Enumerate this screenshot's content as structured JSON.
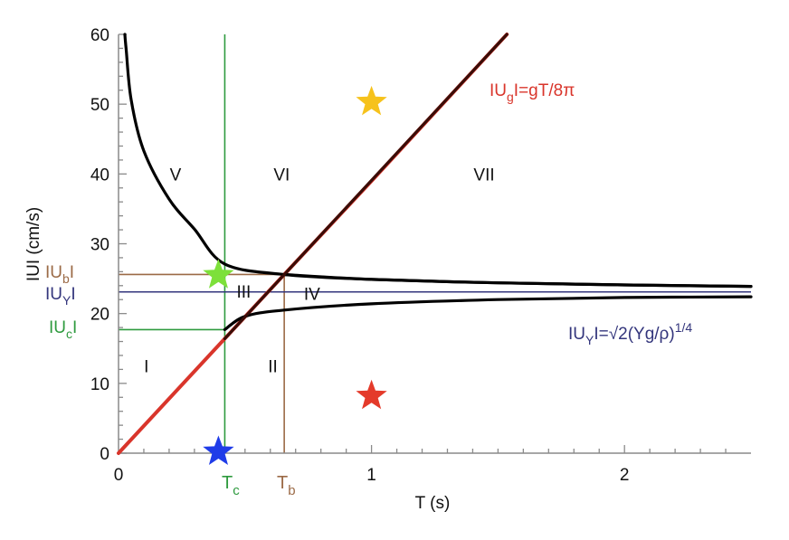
{
  "chart_data": {
    "type": "line",
    "xlabel": "T (s)",
    "ylabel": "IUI (cm/s)",
    "xlim": [
      0,
      2.5
    ],
    "ylim": [
      0,
      60
    ],
    "x_ticks": [
      {
        "value": 0,
        "label": "0"
      },
      {
        "value": 1,
        "label": "1"
      },
      {
        "value": 2,
        "label": "2"
      }
    ],
    "y_ticks": [
      {
        "value": 0,
        "label": "0"
      },
      {
        "value": 10,
        "label": "10"
      },
      {
        "value": 20,
        "label": "20"
      },
      {
        "value": 30,
        "label": "30"
      },
      {
        "value": 40,
        "label": "40"
      },
      {
        "value": 50,
        "label": "50"
      },
      {
        "value": 60,
        "label": "60"
      }
    ],
    "grid": false,
    "constants": {
      "Tc": 0.42,
      "Tb": 0.655,
      "Uc": 17.7,
      "Ub": 25.6,
      "Uy": 23.1
    },
    "series": [
      {
        "color": "#d9352b",
        "formula": "U = 39.0 * T",
        "points": [
          [
            0,
            0
          ],
          [
            0.42,
            16.4
          ],
          [
            0.655,
            25.6
          ],
          [
            1.0,
            39.0
          ],
          [
            1.535,
            60.0
          ]
        ]
      },
      {
        "color": "#000000",
        "points": [
          [
            0.025,
            60.0
          ],
          [
            0.03,
            57.9
          ],
          [
            0.05,
            50.6
          ],
          [
            0.1,
            43.3
          ],
          [
            0.2,
            36.4
          ],
          [
            0.3,
            32.1
          ],
          [
            0.42,
            27.1
          ],
          [
            0.655,
            25.6
          ],
          [
            1.0,
            24.9
          ],
          [
            1.5,
            24.4
          ],
          [
            2.0,
            24.1
          ],
          [
            2.5,
            23.9
          ]
        ]
      },
      {
        "color": "#000000",
        "points": [
          [
            0.655,
            25.6
          ],
          [
            1.0,
            24.9
          ],
          [
            1.5,
            24.4
          ],
          [
            2.0,
            24.1
          ],
          [
            2.5,
            23.9
          ]
        ]
      },
      {
        "color": "#000000",
        "points": [
          [
            0.42,
            17.7
          ],
          [
            0.5,
            19.6
          ],
          [
            0.655,
            20.5
          ],
          [
            1.0,
            21.4
          ],
          [
            1.5,
            22.0
          ],
          [
            2.0,
            22.3
          ],
          [
            2.5,
            22.4
          ]
        ]
      }
    ],
    "guide_lines": [
      {
        "color": "#2e9a3e",
        "orientation": "vertical",
        "x": 0.42,
        "y_range": [
          0,
          60
        ]
      },
      {
        "color": "#2e9a3e",
        "orientation": "horizontal",
        "y": 17.7,
        "x_range": [
          0,
          0.42
        ]
      },
      {
        "color": "#9b6a46",
        "orientation": "vertical",
        "x": 0.655,
        "y_range": [
          0,
          25.6
        ]
      },
      {
        "color": "#9b6a46",
        "orientation": "horizontal",
        "y": 25.6,
        "x_range": [
          0,
          0.655
        ]
      },
      {
        "color": "#33357c",
        "orientation": "horizontal",
        "y": 23.1,
        "x_range": [
          0,
          2.5
        ]
      }
    ],
    "region_labels": [
      {
        "text": "I",
        "x": 0.11,
        "y": 12.5
      },
      {
        "text": "II",
        "x": 0.61,
        "y": 12.5
      },
      {
        "text": "III",
        "x": 0.495,
        "y": 23.2
      },
      {
        "text": "IV",
        "x": 0.765,
        "y": 22.9
      },
      {
        "text": "V",
        "x": 0.225,
        "y": 40.0
      },
      {
        "text": "VI",
        "x": 0.645,
        "y": 40.0
      },
      {
        "text": "VII",
        "x": 1.445,
        "y": 40.0
      }
    ],
    "markers": [
      {
        "shape": "star",
        "color": "#f6c21c",
        "x": 1.0,
        "y": 50.3
      },
      {
        "shape": "star",
        "color": "#e43a2a",
        "x": 1.0,
        "y": 8.2
      },
      {
        "shape": "star",
        "color": "#7de03a",
        "x": 0.395,
        "y": 25.5
      },
      {
        "shape": "star",
        "color": "#1f3ce8",
        "x": 0.395,
        "y": 0.2
      }
    ],
    "annotations": {
      "ug_formula": {
        "color": "#d9352b",
        "parts": [
          "IU",
          "g",
          "I=gT/8π"
        ]
      },
      "uy_formula": {
        "color": "#33357c",
        "parts": [
          "IU",
          "Y",
          "I=√2(Yg/ρ)",
          "1/4"
        ]
      },
      "ub_label": {
        "color": "#9b6a46",
        "parts": [
          "IU",
          "b",
          "I"
        ]
      },
      "uy_label": {
        "color": "#33357c",
        "parts": [
          "IU",
          "Y",
          "I"
        ]
      },
      "uc_label": {
        "color": "#2e9a3e",
        "parts": [
          "IU",
          "c",
          "I"
        ]
      },
      "tc_label": {
        "color": "#2e9a3e",
        "parts": [
          "T",
          "c"
        ]
      },
      "tb_label": {
        "color": "#9b6a46",
        "parts": [
          "T",
          "b"
        ]
      }
    }
  }
}
